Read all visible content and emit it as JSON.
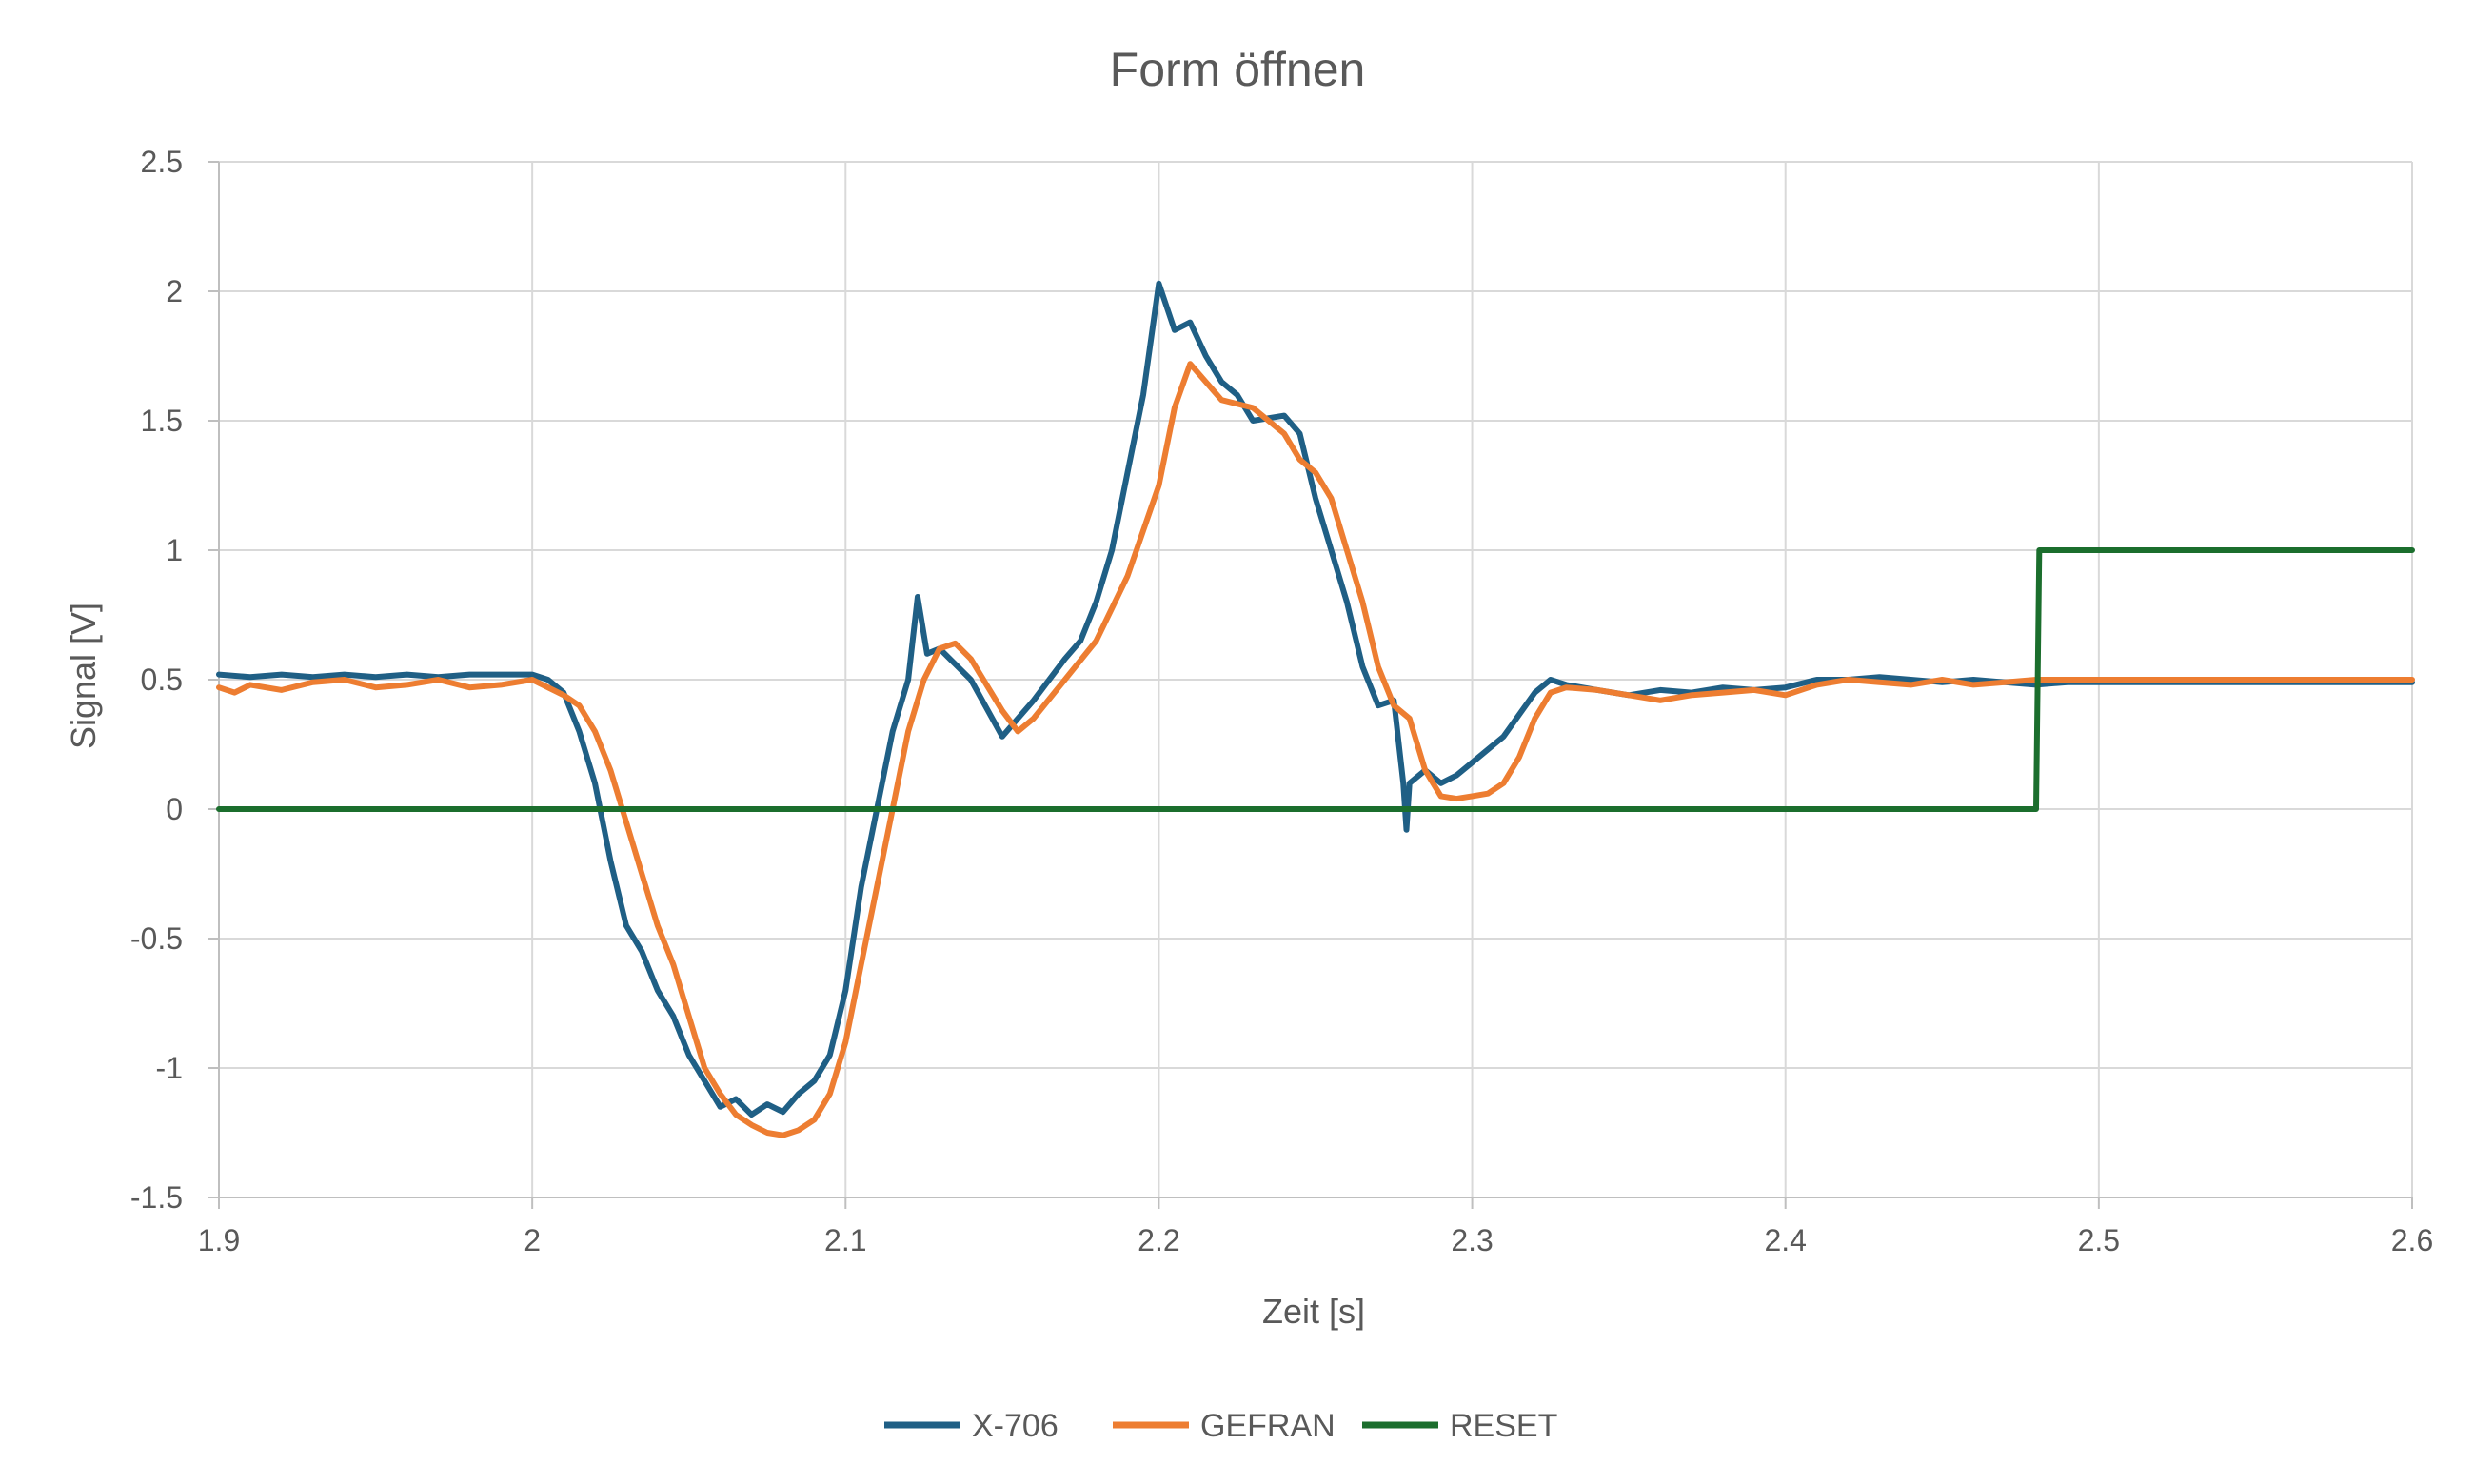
{
  "chart_data": {
    "type": "line",
    "title": "Form öffnen",
    "xlabel": "Zeit [s]",
    "ylabel": "Signal [V]",
    "xlim": [
      1.9,
      2.6
    ],
    "ylim": [
      -1.5,
      2.5
    ],
    "x_ticks": [
      1.9,
      2.0,
      2.1,
      2.2,
      2.3,
      2.4,
      2.5,
      2.6
    ],
    "x_tick_labels": [
      "1.9",
      "2",
      "2.1",
      "2.2",
      "2.3",
      "2.4",
      "2.5",
      "2.6"
    ],
    "y_ticks": [
      2.5,
      2.0,
      1.5,
      1.0,
      0.5,
      0.0,
      -0.5,
      -1.0,
      -1.5
    ],
    "y_tick_labels": [
      "2.5",
      "2",
      "1.5",
      "1",
      "0.5",
      "0",
      "-0.5",
      "-1",
      "-1.5"
    ],
    "grid": true,
    "legend_position": "bottom",
    "series": [
      {
        "name": "X-706",
        "color": "#1f5f85",
        "points": [
          [
            1.9,
            0.52
          ],
          [
            1.91,
            0.51
          ],
          [
            1.92,
            0.52
          ],
          [
            1.93,
            0.51
          ],
          [
            1.94,
            0.52
          ],
          [
            1.95,
            0.51
          ],
          [
            1.96,
            0.52
          ],
          [
            1.97,
            0.51
          ],
          [
            1.98,
            0.52
          ],
          [
            1.99,
            0.52
          ],
          [
            2.0,
            0.52
          ],
          [
            2.005,
            0.5
          ],
          [
            2.01,
            0.45
          ],
          [
            2.015,
            0.3
          ],
          [
            2.02,
            0.1
          ],
          [
            2.025,
            -0.2
          ],
          [
            2.03,
            -0.45
          ],
          [
            2.035,
            -0.55
          ],
          [
            2.04,
            -0.7
          ],
          [
            2.045,
            -0.8
          ],
          [
            2.05,
            -0.95
          ],
          [
            2.055,
            -1.05
          ],
          [
            2.06,
            -1.15
          ],
          [
            2.065,
            -1.12
          ],
          [
            2.07,
            -1.18
          ],
          [
            2.075,
            -1.14
          ],
          [
            2.08,
            -1.17
          ],
          [
            2.085,
            -1.1
          ],
          [
            2.09,
            -1.05
          ],
          [
            2.095,
            -0.95
          ],
          [
            2.1,
            -0.7
          ],
          [
            2.105,
            -0.3
          ],
          [
            2.11,
            0.0
          ],
          [
            2.115,
            0.3
          ],
          [
            2.12,
            0.5
          ],
          [
            2.123,
            0.82
          ],
          [
            2.126,
            0.6
          ],
          [
            2.13,
            0.62
          ],
          [
            2.14,
            0.5
          ],
          [
            2.15,
            0.28
          ],
          [
            2.155,
            0.35
          ],
          [
            2.16,
            0.42
          ],
          [
            2.17,
            0.58
          ],
          [
            2.175,
            0.65
          ],
          [
            2.18,
            0.8
          ],
          [
            2.185,
            1.0
          ],
          [
            2.19,
            1.3
          ],
          [
            2.195,
            1.6
          ],
          [
            2.2,
            2.03
          ],
          [
            2.205,
            1.85
          ],
          [
            2.21,
            1.88
          ],
          [
            2.215,
            1.75
          ],
          [
            2.22,
            1.65
          ],
          [
            2.225,
            1.6
          ],
          [
            2.23,
            1.5
          ],
          [
            2.24,
            1.52
          ],
          [
            2.245,
            1.45
          ],
          [
            2.25,
            1.2
          ],
          [
            2.255,
            1.0
          ],
          [
            2.26,
            0.8
          ],
          [
            2.265,
            0.55
          ],
          [
            2.27,
            0.4
          ],
          [
            2.275,
            0.42
          ],
          [
            2.278,
            0.1
          ],
          [
            2.279,
            -0.08
          ],
          [
            2.28,
            0.1
          ],
          [
            2.285,
            0.15
          ],
          [
            2.29,
            0.1
          ],
          [
            2.295,
            0.13
          ],
          [
            2.3,
            0.18
          ],
          [
            2.31,
            0.28
          ],
          [
            2.32,
            0.45
          ],
          [
            2.325,
            0.5
          ],
          [
            2.33,
            0.48
          ],
          [
            2.34,
            0.46
          ],
          [
            2.35,
            0.44
          ],
          [
            2.36,
            0.46
          ],
          [
            2.37,
            0.45
          ],
          [
            2.38,
            0.47
          ],
          [
            2.39,
            0.46
          ],
          [
            2.4,
            0.47
          ],
          [
            2.41,
            0.5
          ],
          [
            2.42,
            0.5
          ],
          [
            2.43,
            0.51
          ],
          [
            2.44,
            0.5
          ],
          [
            2.45,
            0.49
          ],
          [
            2.46,
            0.5
          ],
          [
            2.47,
            0.49
          ],
          [
            2.48,
            0.48
          ],
          [
            2.49,
            0.49
          ],
          [
            2.5,
            0.49
          ],
          [
            2.55,
            0.49
          ],
          [
            2.6,
            0.49
          ]
        ]
      },
      {
        "name": "GEFRAN",
        "color": "#ed7d31",
        "points": [
          [
            1.9,
            0.47
          ],
          [
            1.905,
            0.45
          ],
          [
            1.91,
            0.48
          ],
          [
            1.92,
            0.46
          ],
          [
            1.93,
            0.49
          ],
          [
            1.94,
            0.5
          ],
          [
            1.95,
            0.47
          ],
          [
            1.96,
            0.48
          ],
          [
            1.97,
            0.5
          ],
          [
            1.98,
            0.47
          ],
          [
            1.99,
            0.48
          ],
          [
            2.0,
            0.5
          ],
          [
            2.01,
            0.44
          ],
          [
            2.015,
            0.4
          ],
          [
            2.02,
            0.3
          ],
          [
            2.025,
            0.15
          ],
          [
            2.03,
            -0.05
          ],
          [
            2.035,
            -0.25
          ],
          [
            2.04,
            -0.45
          ],
          [
            2.045,
            -0.6
          ],
          [
            2.05,
            -0.8
          ],
          [
            2.055,
            -1.0
          ],
          [
            2.06,
            -1.1
          ],
          [
            2.065,
            -1.18
          ],
          [
            2.07,
            -1.22
          ],
          [
            2.075,
            -1.25
          ],
          [
            2.08,
            -1.26
          ],
          [
            2.085,
            -1.24
          ],
          [
            2.09,
            -1.2
          ],
          [
            2.095,
            -1.1
          ],
          [
            2.1,
            -0.9
          ],
          [
            2.105,
            -0.6
          ],
          [
            2.11,
            -0.3
          ],
          [
            2.115,
            0.0
          ],
          [
            2.12,
            0.3
          ],
          [
            2.125,
            0.5
          ],
          [
            2.13,
            0.62
          ],
          [
            2.135,
            0.64
          ],
          [
            2.14,
            0.58
          ],
          [
            2.145,
            0.48
          ],
          [
            2.15,
            0.38
          ],
          [
            2.155,
            0.3
          ],
          [
            2.16,
            0.35
          ],
          [
            2.17,
            0.5
          ],
          [
            2.18,
            0.65
          ],
          [
            2.19,
            0.9
          ],
          [
            2.2,
            1.25
          ],
          [
            2.205,
            1.55
          ],
          [
            2.21,
            1.72
          ],
          [
            2.215,
            1.65
          ],
          [
            2.22,
            1.58
          ],
          [
            2.23,
            1.55
          ],
          [
            2.24,
            1.45
          ],
          [
            2.245,
            1.35
          ],
          [
            2.25,
            1.3
          ],
          [
            2.255,
            1.2
          ],
          [
            2.26,
            1.0
          ],
          [
            2.265,
            0.8
          ],
          [
            2.27,
            0.55
          ],
          [
            2.275,
            0.4
          ],
          [
            2.28,
            0.35
          ],
          [
            2.285,
            0.15
          ],
          [
            2.29,
            0.05
          ],
          [
            2.295,
            0.04
          ],
          [
            2.3,
            0.05
          ],
          [
            2.305,
            0.06
          ],
          [
            2.31,
            0.1
          ],
          [
            2.315,
            0.2
          ],
          [
            2.32,
            0.35
          ],
          [
            2.325,
            0.45
          ],
          [
            2.33,
            0.47
          ],
          [
            2.34,
            0.46
          ],
          [
            2.35,
            0.44
          ],
          [
            2.36,
            0.42
          ],
          [
            2.37,
            0.44
          ],
          [
            2.38,
            0.45
          ],
          [
            2.39,
            0.46
          ],
          [
            2.4,
            0.44
          ],
          [
            2.41,
            0.48
          ],
          [
            2.42,
            0.5
          ],
          [
            2.43,
            0.49
          ],
          [
            2.44,
            0.48
          ],
          [
            2.45,
            0.5
          ],
          [
            2.46,
            0.48
          ],
          [
            2.47,
            0.49
          ],
          [
            2.48,
            0.5
          ],
          [
            2.49,
            0.5
          ],
          [
            2.5,
            0.5
          ],
          [
            2.55,
            0.5
          ],
          [
            2.6,
            0.5
          ]
        ]
      },
      {
        "name": "RESET",
        "color": "#1b6e2d",
        "points": [
          [
            1.9,
            0.0
          ],
          [
            2.48,
            0.0
          ],
          [
            2.481,
            1.0
          ],
          [
            2.6,
            1.0
          ]
        ]
      }
    ]
  }
}
